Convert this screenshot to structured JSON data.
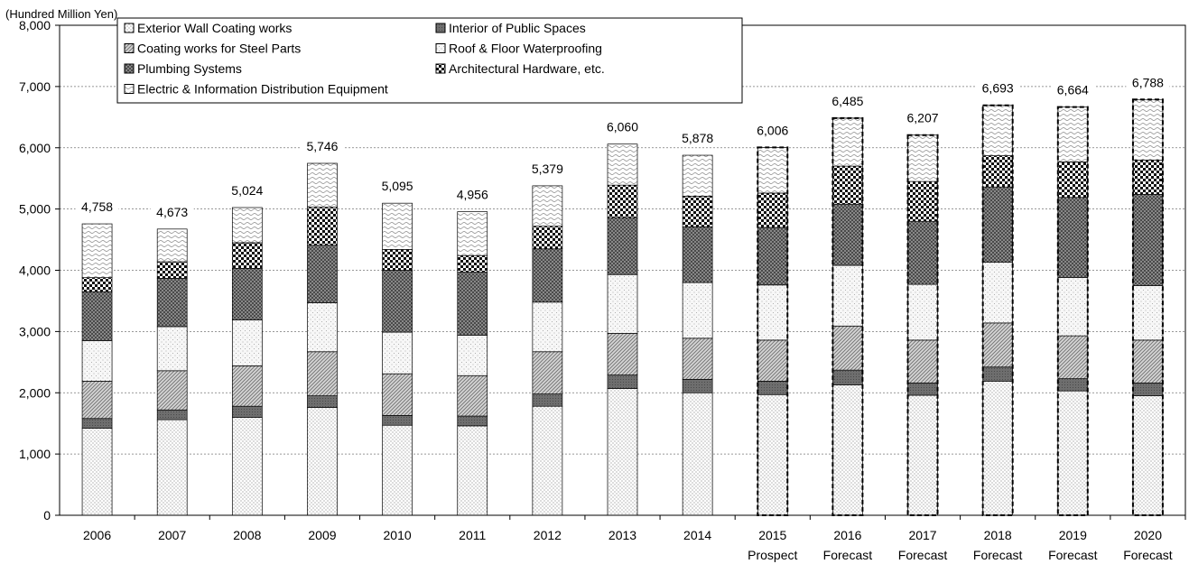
{
  "chart_data": {
    "type": "bar",
    "stacked": true,
    "unit_label": "(Hundred Million Yen)",
    "ylim": [
      0,
      8000
    ],
    "y_ticks": [
      0,
      1000,
      2000,
      3000,
      4000,
      5000,
      6000,
      7000,
      8000
    ],
    "y_tick_labels": [
      "0",
      "1,000",
      "2,000",
      "3,000",
      "4,000",
      "5,000",
      "6,000",
      "7,000",
      "8,000"
    ],
    "grid": true,
    "legend_position": "top-left",
    "categories": [
      {
        "year": "2006",
        "sub": ""
      },
      {
        "year": "2007",
        "sub": ""
      },
      {
        "year": "2008",
        "sub": ""
      },
      {
        "year": "2009",
        "sub": ""
      },
      {
        "year": "2010",
        "sub": ""
      },
      {
        "year": "2011",
        "sub": ""
      },
      {
        "year": "2012",
        "sub": ""
      },
      {
        "year": "2013",
        "sub": ""
      },
      {
        "year": "2014",
        "sub": ""
      },
      {
        "year": "2015",
        "sub": "Prospect"
      },
      {
        "year": "2016",
        "sub": "Forecast"
      },
      {
        "year": "2017",
        "sub": "Forecast"
      },
      {
        "year": "2018",
        "sub": "Forecast"
      },
      {
        "year": "2019",
        "sub": "Forecast"
      },
      {
        "year": "2020",
        "sub": "Forecast"
      }
    ],
    "dashed_from_index": 9,
    "totals": [
      4758,
      4673,
      5024,
      5746,
      5095,
      4956,
      5379,
      6060,
      5878,
      6006,
      6485,
      6207,
      6693,
      6664,
      6788
    ],
    "total_labels": [
      "4,758",
      "4,673",
      "5,024",
      "5,746",
      "5,095",
      "4,956",
      "5,379",
      "6,060",
      "5,878",
      "6,006",
      "6,485",
      "6,207",
      "6,693",
      "6,664",
      "6,788"
    ],
    "series": [
      {
        "name": "Exterior Wall Coating works",
        "pattern": "fine-dots",
        "values": [
          1420,
          1560,
          1600,
          1760,
          1470,
          1460,
          1780,
          2070,
          2000,
          1970,
          2130,
          1960,
          2190,
          2030,
          1950
        ]
      },
      {
        "name": "Interior of Public Spaces",
        "pattern": "dark",
        "values": [
          160,
          160,
          180,
          190,
          160,
          160,
          200,
          220,
          220,
          220,
          240,
          200,
          230,
          200,
          210
        ]
      },
      {
        "name": "Coating works for Steel Parts",
        "pattern": "diagonal",
        "values": [
          610,
          640,
          660,
          720,
          680,
          660,
          690,
          680,
          670,
          670,
          720,
          700,
          720,
          700,
          700
        ]
      },
      {
        "name": "Roof & Floor Waterproofing",
        "pattern": "light-dots",
        "values": [
          660,
          720,
          750,
          800,
          680,
          660,
          810,
          960,
          910,
          900,
          990,
          910,
          990,
          950,
          890
        ]
      },
      {
        "name": "Plumbing Systems",
        "pattern": "crosshatch",
        "values": [
          800,
          790,
          840,
          940,
          1010,
          1030,
          870,
          930,
          910,
          940,
          1000,
          1030,
          1230,
          1310,
          1490
        ]
      },
      {
        "name": "Architectural Hardware, etc.",
        "pattern": "checker",
        "values": [
          230,
          270,
          420,
          620,
          340,
          270,
          370,
          530,
          500,
          560,
          620,
          650,
          510,
          580,
          560
        ]
      },
      {
        "name": "Electric & Information Distribution Equipment",
        "pattern": "wave",
        "values": [
          878,
          533,
          574,
          716,
          755,
          716,
          659,
          670,
          668,
          746,
          785,
          757,
          823,
          894,
          988
        ]
      }
    ],
    "legend_order": [
      "Exterior Wall Coating works",
      "Interior of Public Spaces",
      "Coating works for Steel Parts",
      "Roof & Floor Waterproofing",
      "Plumbing Systems",
      "Architectural Hardware, etc.",
      "Electric & Information Distribution Equipment"
    ]
  }
}
